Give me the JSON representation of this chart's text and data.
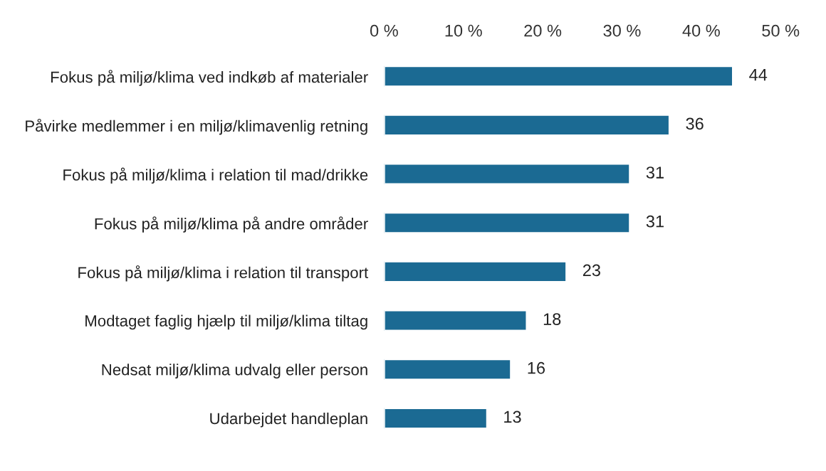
{
  "chart_data": {
    "type": "bar",
    "orientation": "horizontal",
    "categories": [
      "Fokus på miljø/klima ved indkøb af materialer",
      "Påvirke medlemmer i en miljø/klimavenlig retning",
      "Fokus på miljø/klima i relation til mad/drikke",
      "Fokus på miljø/klima på andre områder",
      "Fokus på miljø/klima i relation til transport",
      "Modtaget faglig hjælp til miljø/klima tiltag",
      "Nedsat miljø/klima udvalg eller person",
      "Udarbejdet handleplan"
    ],
    "values": [
      44,
      36,
      31,
      31,
      23,
      18,
      16,
      13
    ],
    "color": "#1b6a93",
    "xlim": [
      0,
      50
    ],
    "xticks": [
      {
        "value": 0,
        "label": "0 %"
      },
      {
        "value": 10,
        "label": "10 %"
      },
      {
        "value": 20,
        "label": "20 %"
      },
      {
        "value": 30,
        "label": "30 %"
      },
      {
        "value": 40,
        "label": "40 %"
      },
      {
        "value": 50,
        "label": "50 %"
      }
    ],
    "data_labels": true,
    "grid": false,
    "legend": false
  }
}
